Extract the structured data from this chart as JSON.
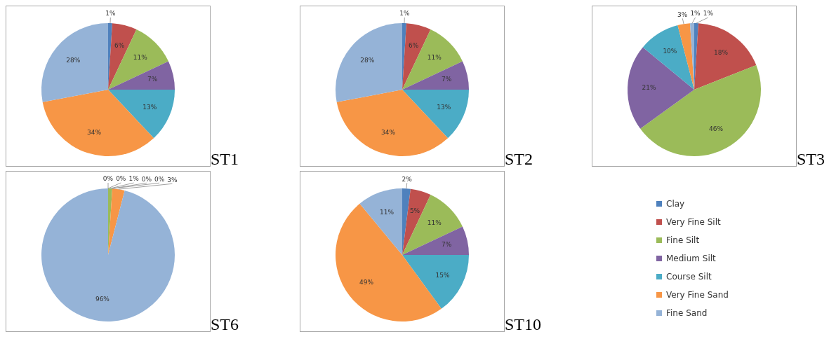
{
  "chart_data": [
    {
      "type": "pie",
      "title": "ST1",
      "categories": [
        null,
        null,
        null,
        null,
        null,
        null,
        null
      ],
      "values": [
        1,
        6,
        11,
        7,
        13,
        34,
        28
      ],
      "value_labels": [
        "1%",
        "6%",
        "11%",
        "7%",
        "13%",
        "34%",
        "28%"
      ],
      "colors": [
        "#4f81bd",
        "#c0504d",
        "#9bbb59",
        "#8064a2",
        "#4bacc6",
        "#f79646",
        "#95b3d7"
      ]
    },
    {
      "type": "pie",
      "title": "ST2",
      "categories": [
        null,
        null,
        null,
        null,
        null,
        null,
        null
      ],
      "values": [
        1,
        6,
        11,
        7,
        13,
        34,
        28
      ],
      "value_labels": [
        "1%",
        "6%",
        "11%",
        "7%",
        "13%",
        "34%",
        "28%"
      ],
      "colors": [
        "#4f81bd",
        "#c0504d",
        "#9bbb59",
        "#8064a2",
        "#4bacc6",
        "#f79646",
        "#95b3d7"
      ]
    },
    {
      "type": "pie",
      "title": "ST3",
      "categories": [
        null,
        null,
        null,
        null,
        null,
        null,
        null
      ],
      "values": [
        1,
        18,
        46,
        21,
        10,
        3,
        1
      ],
      "value_labels": [
        "1%",
        "18%",
        "46%",
        "21%",
        "10%",
        "3%",
        "1%"
      ],
      "colors": [
        "#4f81bd",
        "#c0504d",
        "#9bbb59",
        "#8064a2",
        "#4bacc6",
        "#f79646",
        "#95b3d7"
      ]
    },
    {
      "type": "pie",
      "title": "ST6",
      "categories": [
        null,
        null,
        null,
        null,
        null,
        null,
        null
      ],
      "values": [
        0,
        0,
        1,
        0,
        0,
        3,
        96
      ],
      "value_labels": [
        "0%",
        "0%",
        "1%",
        "0%",
        "0%",
        "3%",
        "96%"
      ],
      "colors": [
        "#4f81bd",
        "#c0504d",
        "#9bbb59",
        "#8064a2",
        "#4bacc6",
        "#f79646",
        "#95b3d7"
      ]
    },
    {
      "type": "pie",
      "title": "ST10",
      "categories": [
        "Clay",
        "Very Fine Silt",
        "Fine Silt",
        "Medium Silt",
        "Course Silt",
        "Very Fine Sand",
        "Fine Sand"
      ],
      "values": [
        2,
        5,
        11,
        7,
        15,
        49,
        11
      ],
      "value_labels": [
        "2%",
        "5%",
        "11%",
        "7%",
        "15%",
        "49%",
        "11%"
      ],
      "colors": [
        "#4f81bd",
        "#c0504d",
        "#9bbb59",
        "#8064a2",
        "#4bacc6",
        "#f79646",
        "#95b3d7"
      ],
      "legend": "right"
    }
  ]
}
